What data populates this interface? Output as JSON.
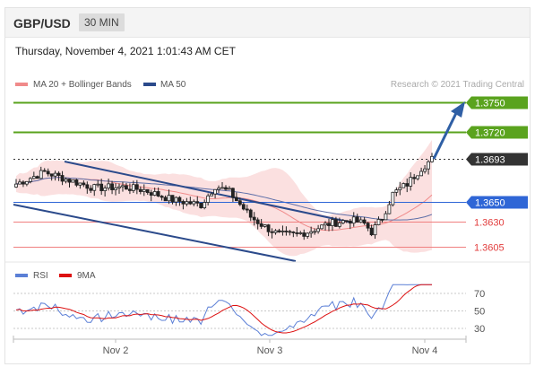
{
  "header": {
    "symbol": "GBP/USD",
    "timeframe": "30 MIN"
  },
  "datetime": "Thursday, November 4, 2021 1:01:43 AM CET",
  "legend": {
    "bollinger": "MA 20 + Bollinger Bands",
    "ma50": "MA 50",
    "credit": "Research © 2021 Trading Central"
  },
  "rsi_legend": {
    "rsi": "RSI",
    "ma9": "9MA"
  },
  "colors": {
    "green": "#5aa31e",
    "blue": "#2f66d6",
    "red": "#e23c3c",
    "dark": "#333333",
    "channel": "#2b4a8b",
    "band": "#f7c6c6"
  },
  "chart_data": [
    {
      "type": "candlestick",
      "x": [
        "Nov 2",
        "Nov 3",
        "Nov 4"
      ],
      "ylim": [
        1.3585,
        1.3775
      ],
      "levels": [
        {
          "value": 1.375,
          "label": "1.3750",
          "color": "green"
        },
        {
          "value": 1.372,
          "label": "1.3720",
          "color": "green"
        },
        {
          "value": 1.3693,
          "label": "1.3693",
          "color": "dark"
        },
        {
          "value": 1.365,
          "label": "1.3650",
          "color": "blue"
        },
        {
          "value": 1.363,
          "label": "1.3630",
          "color": "red"
        },
        {
          "value": 1.3605,
          "label": "1.3605",
          "color": "red"
        }
      ],
      "series": [
        {
          "name": "MA 20 + Bollinger Bands"
        },
        {
          "name": "MA 50"
        }
      ]
    },
    {
      "type": "line",
      "yticks": [
        70,
        50,
        30
      ],
      "ylim": [
        15,
        85
      ],
      "series": [
        {
          "name": "RSI"
        },
        {
          "name": "9MA"
        }
      ]
    }
  ]
}
